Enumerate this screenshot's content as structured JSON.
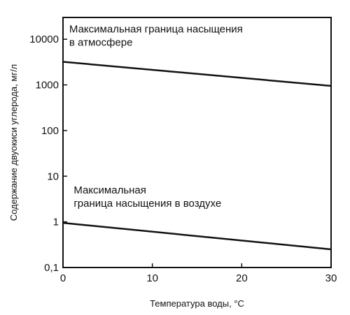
{
  "chart_data": {
    "type": "line",
    "title": "",
    "xlabel": "Температура воды, °С",
    "ylabel": "Содержание двуокиси углерода, мг/л",
    "xlim": [
      0,
      30
    ],
    "ylim": [
      0.1,
      30000
    ],
    "yscale": "log",
    "grid": false,
    "x_ticks": [
      {
        "value": 0,
        "label": "0"
      },
      {
        "value": 10,
        "label": "10"
      },
      {
        "value": 20,
        "label": "20"
      },
      {
        "value": 30,
        "label": "30"
      }
    ],
    "y_ticks": [
      {
        "value": 0.1,
        "label": "0,1"
      },
      {
        "value": 1,
        "label": "1"
      },
      {
        "value": 10,
        "label": "10"
      },
      {
        "value": 100,
        "label": "100"
      },
      {
        "value": 1000,
        "label": "1000"
      },
      {
        "value": 10000,
        "label": "10000"
      }
    ],
    "series": [
      {
        "x": [
          0,
          30
        ],
        "y": [
          3200,
          950
        ]
      },
      {
        "x": [
          0,
          30
        ],
        "y": [
          0.95,
          0.25
        ]
      }
    ],
    "annotations": [
      {
        "lines": [
          "Максимальная граница насыщения",
          "в атмосфере"
        ],
        "x": 0.7,
        "y": 14000
      },
      {
        "lines": [
          "Максимальная",
          "граница насыщения в воздухе"
        ],
        "x": 1.2,
        "y": 4.2
      }
    ],
    "colors": {
      "line": "#111111",
      "axis": "#111111"
    }
  }
}
